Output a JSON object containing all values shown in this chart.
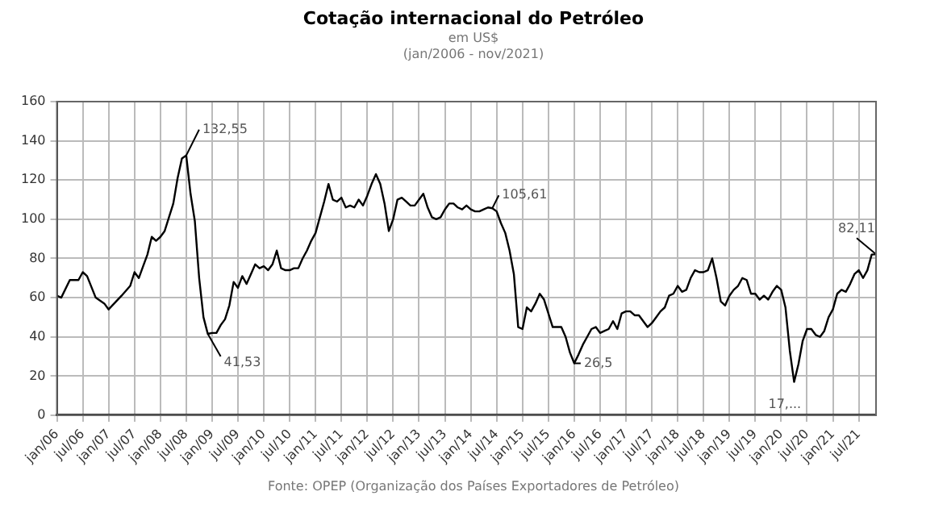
{
  "chart_data": {
    "type": "line",
    "title": "Cotação internacional do Petróleo",
    "subtitle": "em US$\n(jan/2006 - nov/2021)",
    "annotations": [
      {
        "text": "132,55",
        "x": "2008-07",
        "y": 132.55
      },
      {
        "text": "41,53",
        "x": "2008-12",
        "y": 41.53
      },
      {
        "text": "105,61",
        "x": "2014-06",
        "y": 105.61
      },
      {
        "text": "26,5",
        "x": "2016-01",
        "y": 26.5
      },
      {
        "text": "17,...",
        "x": "2020-04",
        "y": 17
      },
      {
        "text": "82,11",
        "x": "2021-11",
        "y": 82.11
      },
      "Fonte: OPEP (Organização dos Países Exportadores de Petróleo)"
    ],
    "x": [
      "2006-01",
      "2006-02",
      "2006-04",
      "2006-06",
      "2006-07",
      "2006-08",
      "2006-10",
      "2006-12",
      "2007-01",
      "2007-04",
      "2007-06",
      "2007-07",
      "2007-08",
      "2007-09",
      "2007-10",
      "2007-11",
      "2007-12",
      "2008-01",
      "2008-02",
      "2008-03",
      "2008-04",
      "2008-05",
      "2008-06",
      "2008-07",
      "2008-08",
      "2008-09",
      "2008-10",
      "2008-11",
      "2008-12",
      "2009-01",
      "2009-02",
      "2009-03",
      "2009-04",
      "2009-05",
      "2009-06",
      "2009-07",
      "2009-08",
      "2009-09",
      "2009-10",
      "2009-11",
      "2009-12",
      "2010-01",
      "2010-02",
      "2010-03",
      "2010-04",
      "2010-05",
      "2010-06",
      "2010-07",
      "2010-08",
      "2010-09",
      "2010-10",
      "2010-11",
      "2010-12",
      "2011-01",
      "2011-02",
      "2011-03",
      "2011-04",
      "2011-05",
      "2011-06",
      "2011-07",
      "2011-08",
      "2011-09",
      "2011-10",
      "2011-11",
      "2011-12",
      "2012-01",
      "2012-02",
      "2012-03",
      "2012-04",
      "2012-05",
      "2012-06",
      "2012-07",
      "2012-08",
      "2012-09",
      "2012-10",
      "2012-11",
      "2012-12",
      "2013-01",
      "2013-02",
      "2013-03",
      "2013-04",
      "2013-05",
      "2013-06",
      "2013-07",
      "2013-08",
      "2013-09",
      "2013-10",
      "2013-11",
      "2013-12",
      "2014-01",
      "2014-02",
      "2014-03",
      "2014-04",
      "2014-05",
      "2014-06",
      "2014-07",
      "2014-08",
      "2014-09",
      "2014-10",
      "2014-11",
      "2014-12",
      "2015-01",
      "2015-02",
      "2015-03",
      "2015-04",
      "2015-05",
      "2015-06",
      "2015-07",
      "2015-08",
      "2015-09",
      "2015-10",
      "2015-11",
      "2015-12",
      "2016-01",
      "2016-02",
      "2016-03",
      "2016-04",
      "2016-05",
      "2016-06",
      "2016-07",
      "2016-08",
      "2016-09",
      "2016-10",
      "2016-11",
      "2016-12",
      "2017-01",
      "2017-02",
      "2017-03",
      "2017-04",
      "2017-05",
      "2017-06",
      "2017-07",
      "2017-08",
      "2017-09",
      "2017-10",
      "2017-11",
      "2017-12",
      "2018-01",
      "2018-02",
      "2018-03",
      "2018-04",
      "2018-05",
      "2018-06",
      "2018-07",
      "2018-08",
      "2018-09",
      "2018-10",
      "2018-11",
      "2018-12",
      "2019-01",
      "2019-02",
      "2019-03",
      "2019-04",
      "2019-05",
      "2019-06",
      "2019-07",
      "2019-08",
      "2019-09",
      "2019-10",
      "2019-11",
      "2019-12",
      "2020-01",
      "2020-02",
      "2020-03",
      "2020-04",
      "2020-05",
      "2020-06",
      "2020-07",
      "2020-08",
      "2020-09",
      "2020-10",
      "2020-11",
      "2020-12",
      "2021-01",
      "2021-02",
      "2021-03",
      "2021-04",
      "2021-05",
      "2021-06",
      "2021-07",
      "2021-08",
      "2021-09",
      "2021-10",
      "2021-11"
    ],
    "series": [
      {
        "color": "#000000",
        "values": [
          61,
          60,
          69,
          69,
          73,
          71,
          60,
          57,
          54,
          61,
          66,
          73,
          70,
          76,
          82,
          91,
          89,
          91,
          94,
          101,
          108,
          121,
          131,
          132.55,
          113,
          99,
          70,
          50,
          41.53,
          42,
          42,
          46,
          49,
          56,
          68,
          65,
          71,
          67,
          72,
          77,
          75,
          76,
          74,
          77,
          84,
          75,
          74,
          74,
          75,
          75,
          80,
          84,
          89,
          93,
          101,
          109,
          118,
          110,
          109,
          111,
          106,
          107,
          106,
          110,
          107,
          112,
          118,
          123,
          118,
          108,
          94,
          100,
          110,
          111,
          109,
          107,
          107,
          110,
          113,
          106,
          101,
          100,
          101,
          105,
          108,
          108,
          106,
          105,
          107,
          105,
          104,
          104,
          105,
          106,
          105.61,
          104,
          98,
          93,
          84,
          72,
          45,
          44,
          55,
          53,
          57,
          62,
          59,
          52,
          45,
          45,
          45,
          40,
          32,
          26.5,
          31,
          36,
          40,
          44,
          45,
          42,
          43,
          44,
          48,
          44,
          52,
          53,
          53,
          51,
          51,
          48,
          45,
          47,
          50,
          53,
          55,
          61,
          62,
          66,
          63,
          64,
          70,
          74,
          73,
          73,
          74,
          80,
          70,
          58,
          56,
          61,
          64,
          66,
          70,
          69,
          62,
          62,
          59,
          61,
          59,
          63,
          66,
          64,
          55,
          33,
          17,
          26,
          38,
          44,
          44,
          41,
          40,
          43,
          50,
          54,
          62,
          64,
          63,
          67,
          72,
          74,
          70,
          74,
          82,
          82.11
        ]
      }
    ],
    "xlim": [
      "2006-01",
      "2021-11"
    ],
    "xticks": [
      {
        "value": "2006-01",
        "label": "jan/06"
      },
      {
        "value": "2006-07",
        "label": "jul/06"
      },
      {
        "value": "2007-01",
        "label": "jan/07"
      },
      {
        "value": "2007-07",
        "label": "jul/07"
      },
      {
        "value": "2008-01",
        "label": "jan/08"
      },
      {
        "value": "2008-07",
        "label": "jul/08"
      },
      {
        "value": "2009-01",
        "label": "jan/09"
      },
      {
        "value": "2009-07",
        "label": "jul/09"
      },
      {
        "value": "2010-01",
        "label": "jan/10"
      },
      {
        "value": "2010-07",
        "label": "jul/10"
      },
      {
        "value": "2011-01",
        "label": "jan/11"
      },
      {
        "value": "2011-07",
        "label": "jul/11"
      },
      {
        "value": "2012-01",
        "label": "jan/12"
      },
      {
        "value": "2012-07",
        "label": "jul/12"
      },
      {
        "value": "2013-01",
        "label": "jan/13"
      },
      {
        "value": "2013-07",
        "label": "jul/13"
      },
      {
        "value": "2014-01",
        "label": "jan/14"
      },
      {
        "value": "2014-07",
        "label": "jul/14"
      },
      {
        "value": "2015-01",
        "label": "jan/15"
      },
      {
        "value": "2015-07",
        "label": "jul/15"
      },
      {
        "value": "2016-01",
        "label": "jan/16"
      },
      {
        "value": "2016-07",
        "label": "jul/16"
      },
      {
        "value": "2017-01",
        "label": "jan/17"
      },
      {
        "value": "2017-07",
        "label": "jul/17"
      },
      {
        "value": "2018-01",
        "label": "jan/18"
      },
      {
        "value": "2018-07",
        "label": "jul/18"
      },
      {
        "value": "2019-01",
        "label": "jan/19"
      },
      {
        "value": "2019-07",
        "label": "jul/19"
      },
      {
        "value": "2020-01",
        "label": "jan/20"
      },
      {
        "value": "2020-07",
        "label": "jul/20"
      },
      {
        "value": "2021-01",
        "label": "jan/21"
      },
      {
        "value": "2021-07",
        "label": "jul/21"
      }
    ],
    "ylim": [
      0,
      160
    ],
    "yticks": [
      0,
      20,
      40,
      60,
      80,
      100,
      120,
      140,
      160
    ],
    "grid": true,
    "legend": false,
    "marker": "none",
    "line_style": "solid"
  }
}
